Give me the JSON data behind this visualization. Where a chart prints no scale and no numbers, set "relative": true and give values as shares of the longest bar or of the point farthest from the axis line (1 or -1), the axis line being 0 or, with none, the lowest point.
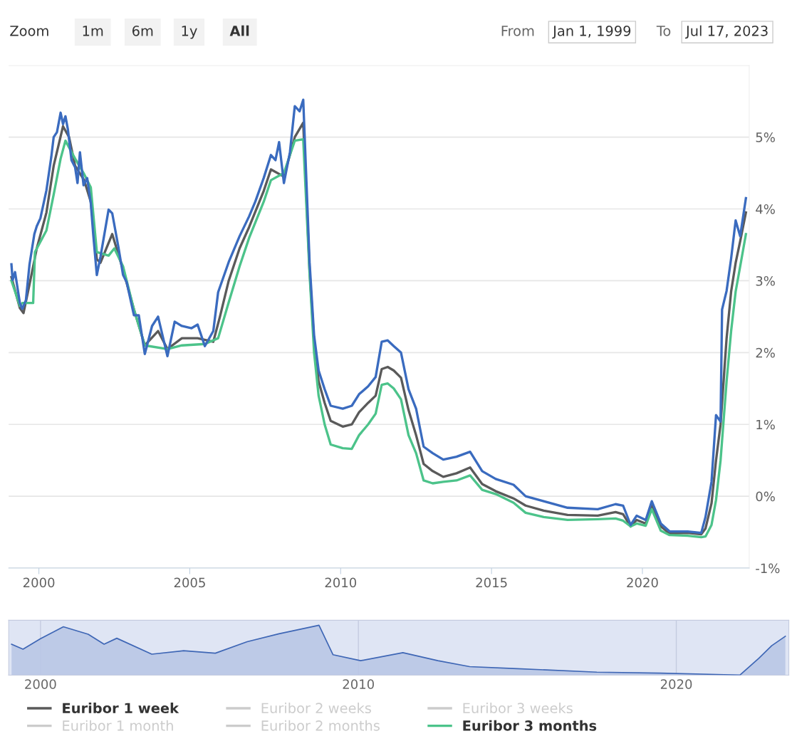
{
  "chart_data": [
    {
      "type": "line",
      "annotations": [
        "Zoom",
        "1m",
        "6m",
        "1y",
        "All",
        "From",
        "Jan 1, 1999",
        "To",
        "Jul 17, 2023"
      ],
      "xlim": [
        1999,
        2023.54
      ],
      "xticks": [
        2000,
        2005,
        2010,
        2015,
        2020
      ],
      "ylim": [
        -1,
        6
      ],
      "yticks": [
        {
          "value": -1,
          "label": "-1%"
        },
        {
          "value": 0,
          "label": "0%"
        },
        {
          "value": 1,
          "label": "1%"
        },
        {
          "value": 2,
          "label": "2%"
        },
        {
          "value": 3,
          "label": "3%"
        },
        {
          "value": 4,
          "label": "4%"
        },
        {
          "value": 5,
          "label": "5%"
        },
        {
          "value": 6,
          "label": null
        }
      ],
      "grid": "y",
      "legend": "bottom",
      "line_style": "solid",
      "series": [
        {
          "name": "Euribor 1 week",
          "color": "#5a5a5a",
          "x": [
            1999.09,
            1999.37,
            1999.49,
            1999.69,
            1999.93,
            2000.25,
            2000.49,
            2000.8,
            2001.0,
            2001.2,
            2001.5,
            2001.72,
            2001.92,
            2002.04,
            2002.43,
            2002.79,
            2003.15,
            2003.51,
            2003.95,
            2004.26,
            2004.74,
            2005.26,
            2005.78,
            2006.0,
            2006.29,
            2006.65,
            2006.97,
            2007.45,
            2007.69,
            2008.12,
            2008.48,
            2008.76,
            2008.97,
            2009.12,
            2009.27,
            2009.47,
            2009.67,
            2010.07,
            2010.37,
            2010.61,
            2010.91,
            2011.16,
            2011.36,
            2011.56,
            2011.76,
            2012.0,
            2012.25,
            2012.5,
            2012.75,
            2013.05,
            2013.4,
            2013.84,
            2014.29,
            2014.69,
            2015.14,
            2015.73,
            2016.13,
            2016.73,
            2017.52,
            2018.52,
            2019.11,
            2019.36,
            2019.61,
            2019.81,
            2020.11,
            2020.31,
            2020.61,
            2020.9,
            2021.5,
            2021.95,
            2022.09,
            2022.29,
            2022.44,
            2022.59,
            2022.79,
            2022.94,
            2023.09,
            2023.24,
            2023.43
          ],
          "values": [
            3.05,
            2.62,
            2.55,
            2.95,
            3.45,
            3.95,
            4.6,
            5.15,
            5.0,
            4.6,
            4.4,
            4.1,
            3.3,
            3.25,
            3.65,
            3.15,
            2.6,
            2.1,
            2.3,
            2.05,
            2.2,
            2.2,
            2.15,
            2.5,
            3.0,
            3.45,
            3.75,
            4.25,
            4.55,
            4.45,
            5.0,
            5.2,
            3.15,
            2.15,
            1.6,
            1.3,
            1.05,
            0.97,
            1.0,
            1.17,
            1.3,
            1.4,
            1.77,
            1.8,
            1.75,
            1.65,
            1.2,
            0.85,
            0.45,
            0.35,
            0.27,
            0.32,
            0.4,
            0.17,
            0.07,
            -0.03,
            -0.13,
            -0.2,
            -0.26,
            -0.27,
            -0.22,
            -0.25,
            -0.42,
            -0.33,
            -0.38,
            -0.12,
            -0.42,
            -0.52,
            -0.51,
            -0.53,
            -0.45,
            -0.1,
            0.5,
            1.0,
            2.2,
            2.85,
            3.25,
            3.55,
            3.95
          ]
        },
        {
          "name": "Euribor 2 weeks",
          "color": "#cccccc"
        },
        {
          "name": "Euribor 3 weeks",
          "color": "#cccccc"
        },
        {
          "name": "Euribor 1 month",
          "color": "#cccccc"
        },
        {
          "name": "Euribor 2 months",
          "color": "#cccccc"
        },
        {
          "name": "Euribor 3 months",
          "color": "#4cc38a",
          "x": [
            1999.09,
            1999.37,
            1999.45,
            1999.81,
            1999.87,
            2000.25,
            2000.49,
            2000.72,
            2000.88,
            2001.2,
            2001.48,
            2001.72,
            2001.92,
            2002.31,
            2002.5,
            2002.79,
            2003.15,
            2003.51,
            2004.26,
            2004.74,
            2005.5,
            2005.94,
            2006.29,
            2006.65,
            2006.97,
            2007.45,
            2007.69,
            2008.12,
            2008.48,
            2008.76,
            2008.97,
            2009.12,
            2009.27,
            2009.47,
            2009.67,
            2010.07,
            2010.37,
            2010.61,
            2010.91,
            2011.16,
            2011.36,
            2011.56,
            2011.76,
            2012.0,
            2012.25,
            2012.5,
            2012.75,
            2013.05,
            2013.4,
            2013.84,
            2014.29,
            2014.69,
            2015.14,
            2015.73,
            2016.13,
            2016.73,
            2017.52,
            2018.52,
            2019.11,
            2019.36,
            2019.61,
            2019.81,
            2020.11,
            2020.31,
            2020.61,
            2020.9,
            2021.5,
            2021.95,
            2022.09,
            2022.29,
            2022.44,
            2022.59,
            2022.79,
            2022.94,
            2023.09,
            2023.24,
            2023.43
          ],
          "values": [
            3.0,
            2.65,
            2.69,
            2.69,
            3.4,
            3.7,
            4.2,
            4.7,
            4.95,
            4.7,
            4.5,
            4.3,
            3.4,
            3.35,
            3.45,
            3.2,
            2.6,
            2.1,
            2.05,
            2.1,
            2.12,
            2.2,
            2.7,
            3.2,
            3.6,
            4.1,
            4.4,
            4.5,
            4.95,
            4.97,
            3.1,
            2.0,
            1.4,
            1.0,
            0.72,
            0.67,
            0.66,
            0.85,
            1.0,
            1.15,
            1.55,
            1.57,
            1.5,
            1.35,
            0.85,
            0.6,
            0.22,
            0.18,
            0.2,
            0.22,
            0.29,
            0.09,
            0.03,
            -0.09,
            -0.23,
            -0.29,
            -0.33,
            -0.32,
            -0.31,
            -0.34,
            -0.42,
            -0.38,
            -0.41,
            -0.18,
            -0.48,
            -0.54,
            -0.55,
            -0.57,
            -0.56,
            -0.4,
            -0.05,
            0.5,
            1.6,
            2.3,
            2.85,
            3.2,
            3.65
          ]
        },
        {
          "color": "#3a6bbf",
          "x": [
            1999.09,
            1999.13,
            1999.21,
            1999.37,
            1999.45,
            1999.57,
            1999.69,
            1999.85,
            1999.93,
            2000.05,
            2000.25,
            2000.41,
            2000.49,
            2000.6,
            2000.72,
            2000.8,
            2000.88,
            2000.96,
            2001.08,
            2001.2,
            2001.28,
            2001.36,
            2001.48,
            2001.6,
            2001.72,
            2001.8,
            2001.92,
            2002.04,
            2002.31,
            2002.43,
            2002.63,
            2002.79,
            2002.91,
            2003.15,
            2003.31,
            2003.51,
            2003.75,
            2003.95,
            2004.26,
            2004.5,
            2004.74,
            2005.06,
            2005.26,
            2005.5,
            2005.78,
            2005.94,
            2006.29,
            2006.65,
            2006.97,
            2007.17,
            2007.45,
            2007.69,
            2007.84,
            2007.96,
            2008.12,
            2008.32,
            2008.48,
            2008.64,
            2008.76,
            2008.97,
            2009.12,
            2009.27,
            2009.47,
            2009.67,
            2010.07,
            2010.37,
            2010.61,
            2010.91,
            2011.16,
            2011.36,
            2011.56,
            2011.76,
            2012.0,
            2012.25,
            2012.5,
            2012.75,
            2013.05,
            2013.4,
            2013.84,
            2014.29,
            2014.69,
            2015.14,
            2015.73,
            2016.13,
            2016.73,
            2017.52,
            2018.52,
            2019.11,
            2019.36,
            2019.61,
            2019.81,
            2020.11,
            2020.31,
            2020.61,
            2020.9,
            2021.5,
            2021.95,
            2022.09,
            2022.29,
            2022.44,
            2022.59,
            2022.64,
            2022.79,
            2022.94,
            2023.09,
            2023.24,
            2023.43
          ],
          "values": [
            3.23,
            3.01,
            3.12,
            2.69,
            2.61,
            2.73,
            3.23,
            3.65,
            3.76,
            3.87,
            4.26,
            4.72,
            5.0,
            5.07,
            5.34,
            5.18,
            5.29,
            5.11,
            4.68,
            4.58,
            4.36,
            4.79,
            4.33,
            4.43,
            4.08,
            3.65,
            3.08,
            3.33,
            3.99,
            3.94,
            3.48,
            3.08,
            2.98,
            2.52,
            2.52,
            1.98,
            2.37,
            2.5,
            1.95,
            2.43,
            2.37,
            2.34,
            2.39,
            2.09,
            2.3,
            2.84,
            3.26,
            3.62,
            3.9,
            4.1,
            4.43,
            4.75,
            4.68,
            4.93,
            4.36,
            4.79,
            5.43,
            5.36,
            5.52,
            3.26,
            2.24,
            1.75,
            1.49,
            1.26,
            1.22,
            1.26,
            1.42,
            1.53,
            1.66,
            2.15,
            2.17,
            2.09,
            2.0,
            1.49,
            1.22,
            0.69,
            0.6,
            0.51,
            0.55,
            0.62,
            0.35,
            0.24,
            0.16,
            0.0,
            -0.07,
            -0.16,
            -0.18,
            -0.11,
            -0.13,
            -0.4,
            -0.27,
            -0.33,
            -0.07,
            -0.38,
            -0.49,
            -0.49,
            -0.51,
            -0.29,
            0.2,
            1.13,
            1.04,
            2.6,
            2.86,
            3.31,
            3.84,
            3.62,
            4.15
          ]
        }
      ]
    },
    {
      "type": "area",
      "relative": true,
      "tick_labels": "x",
      "grid": "x",
      "xlim": [
        1999,
        2023.54
      ],
      "xticks": [
        2000,
        2010,
        2020
      ],
      "series": [
        {
          "color": "#3e66b5",
          "x": [
            1999.09,
            1999.45,
            2000.0,
            2000.72,
            2001.5,
            2002.0,
            2002.4,
            2003.5,
            2004.5,
            2005.5,
            2006.5,
            2007.5,
            2008.76,
            2009.2,
            2010.07,
            2011.4,
            2012.5,
            2013.5,
            2015.0,
            2017.5,
            2019.5,
            2021.5,
            2022.0,
            2022.6,
            2023.0,
            2023.43
          ],
          "values": [
            0.62,
            0.52,
            0.73,
            0.97,
            0.82,
            0.62,
            0.74,
            0.42,
            0.49,
            0.44,
            0.67,
            0.83,
            1.0,
            0.41,
            0.29,
            0.45,
            0.29,
            0.17,
            0.13,
            0.06,
            0.04,
            0.01,
            0.0,
            0.34,
            0.59,
            0.78
          ]
        }
      ]
    }
  ]
}
